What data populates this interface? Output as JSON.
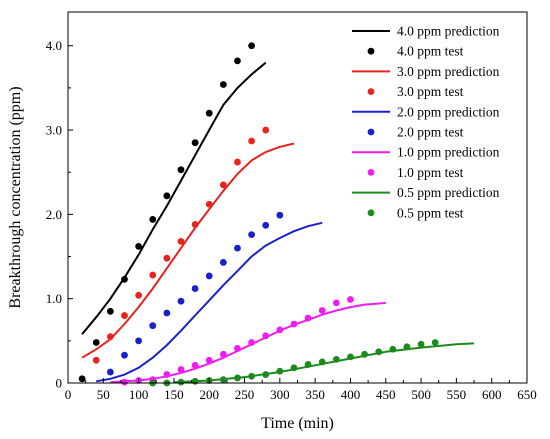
{
  "chart_data": {
    "type": "scatter",
    "title": "",
    "xlabel": "Time (min)",
    "ylabel": "Breakthrough concentration (ppm)",
    "xlim": [
      0,
      650
    ],
    "ylim": [
      0,
      4.4
    ],
    "x_ticks": [
      "0",
      "50",
      "100",
      "150",
      "200",
      "250",
      "300",
      "350",
      "400",
      "450",
      "500",
      "550",
      "600",
      "650"
    ],
    "y_ticks": [
      "0",
      "1.0",
      "2.0",
      "3.0",
      "4.0"
    ],
    "grid": false,
    "legend_position": "top-right",
    "series": [
      {
        "name": "4.0 ppm prediction",
        "kind": "line",
        "color": "#000000",
        "x": [
          20,
          40,
          60,
          80,
          100,
          120,
          140,
          160,
          180,
          200,
          220,
          240,
          260,
          280
        ],
        "y": [
          0.58,
          0.78,
          1.0,
          1.25,
          1.52,
          1.82,
          2.1,
          2.4,
          2.7,
          3.0,
          3.3,
          3.5,
          3.66,
          3.8
        ]
      },
      {
        "name": "4.0 ppm test",
        "kind": "scatter",
        "color": "#000000",
        "x": [
          20,
          40,
          60,
          80,
          100,
          120,
          140,
          160,
          180,
          200,
          220,
          240,
          260
        ],
        "y": [
          0.05,
          0.48,
          0.85,
          1.23,
          1.62,
          1.94,
          2.22,
          2.53,
          2.85,
          3.2,
          3.54,
          3.82,
          4.0
        ]
      },
      {
        "name": "3.0 ppm prediction",
        "kind": "line",
        "color": "#e8231d",
        "x": [
          20,
          40,
          60,
          80,
          100,
          120,
          140,
          160,
          180,
          200,
          220,
          240,
          260,
          280,
          300,
          320
        ],
        "y": [
          0.3,
          0.4,
          0.52,
          0.7,
          0.9,
          1.12,
          1.36,
          1.6,
          1.84,
          2.06,
          2.28,
          2.48,
          2.64,
          2.74,
          2.8,
          2.84
        ]
      },
      {
        "name": "3.0 ppm test",
        "kind": "scatter",
        "color": "#e8231d",
        "x": [
          40,
          60,
          80,
          100,
          120,
          140,
          160,
          180,
          200,
          220,
          240,
          260,
          280
        ],
        "y": [
          0.27,
          0.55,
          0.8,
          1.04,
          1.28,
          1.48,
          1.68,
          1.88,
          2.12,
          2.35,
          2.62,
          2.87,
          3.0
        ]
      },
      {
        "name": "2.0 ppm prediction",
        "kind": "line",
        "color": "#1a21c9",
        "x": [
          40,
          60,
          80,
          100,
          120,
          140,
          160,
          180,
          200,
          220,
          240,
          260,
          280,
          300,
          320,
          340,
          360
        ],
        "y": [
          0.02,
          0.05,
          0.1,
          0.18,
          0.3,
          0.45,
          0.62,
          0.8,
          0.98,
          1.16,
          1.33,
          1.5,
          1.63,
          1.72,
          1.8,
          1.86,
          1.9
        ]
      },
      {
        "name": "2.0 ppm test",
        "kind": "scatter",
        "color": "#1a21c9",
        "x": [
          60,
          80,
          100,
          120,
          140,
          160,
          180,
          200,
          220,
          240,
          260,
          280,
          300
        ],
        "y": [
          0.13,
          0.33,
          0.5,
          0.68,
          0.83,
          0.97,
          1.12,
          1.27,
          1.43,
          1.6,
          1.76,
          1.87,
          1.99
        ]
      },
      {
        "name": "1.0 ppm prediction",
        "kind": "line",
        "color": "#ee1cf0",
        "x": [
          60,
          80,
          100,
          120,
          140,
          160,
          180,
          200,
          220,
          240,
          260,
          280,
          300,
          320,
          340,
          360,
          380,
          400,
          420,
          450
        ],
        "y": [
          0.01,
          0.02,
          0.03,
          0.05,
          0.08,
          0.12,
          0.17,
          0.23,
          0.3,
          0.38,
          0.46,
          0.54,
          0.62,
          0.69,
          0.75,
          0.81,
          0.86,
          0.9,
          0.93,
          0.95
        ]
      },
      {
        "name": "1.0 ppm test",
        "kind": "scatter",
        "color": "#ee1cf0",
        "x": [
          80,
          100,
          120,
          140,
          160,
          180,
          200,
          220,
          240,
          260,
          280,
          300,
          320,
          340,
          360,
          380,
          400
        ],
        "y": [
          0.01,
          0.03,
          0.04,
          0.1,
          0.16,
          0.21,
          0.27,
          0.34,
          0.41,
          0.48,
          0.56,
          0.63,
          0.7,
          0.77,
          0.86,
          0.95,
          0.99
        ]
      },
      {
        "name": "0.5 ppm prediction",
        "kind": "line",
        "color": "#1d8a1d",
        "x": [
          150,
          200,
          250,
          300,
          350,
          400,
          450,
          500,
          550,
          575
        ],
        "y": [
          0.01,
          0.03,
          0.07,
          0.13,
          0.21,
          0.29,
          0.37,
          0.42,
          0.46,
          0.47
        ]
      },
      {
        "name": "0.5 ppm test",
        "kind": "scatter",
        "color": "#1d8a1d",
        "x": [
          120,
          140,
          160,
          180,
          200,
          220,
          240,
          260,
          280,
          300,
          320,
          340,
          360,
          380,
          400,
          420,
          440,
          460,
          480,
          500,
          520
        ],
        "y": [
          0.0,
          0.0,
          0.01,
          0.02,
          0.03,
          0.04,
          0.06,
          0.08,
          0.1,
          0.14,
          0.18,
          0.22,
          0.25,
          0.28,
          0.31,
          0.34,
          0.37,
          0.4,
          0.43,
          0.46,
          0.48
        ]
      }
    ]
  }
}
